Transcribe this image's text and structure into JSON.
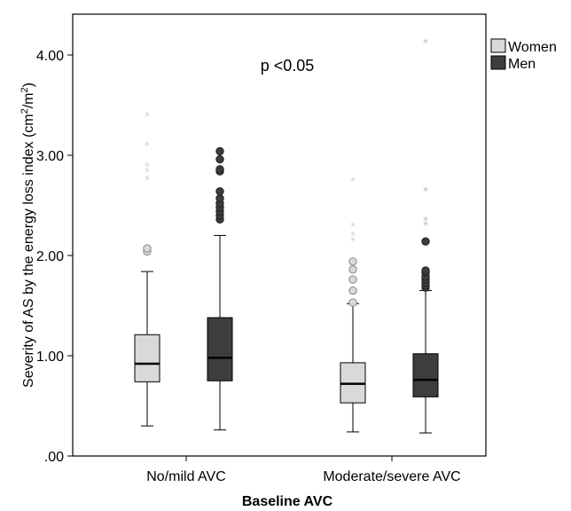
{
  "chart_data": {
    "type": "boxplot",
    "title": "",
    "xlabel": "Baseline AVC",
    "ylabel": "Severity of AS by the energy loss index (cm²/m²)",
    "ylabel_main": "Severity of AS by the energy loss index (cm",
    "ylabel_sup1": "2",
    "ylabel_mid": "/m",
    "ylabel_sup2": "2",
    "ylabel_end": ")",
    "ylim": [
      0,
      4.45
    ],
    "yticks": [
      0,
      1,
      2,
      3,
      4
    ],
    "ytick_labels": [
      ".00",
      "1.00",
      "2.00",
      "3.00",
      "4.00"
    ],
    "categories": [
      "No/mild AVC",
      "Moderate/severe AVC"
    ],
    "annotation": "p <0.05",
    "legend_position": "right-outside-top",
    "grid": false,
    "colors": {
      "Women": "#d9d9d9",
      "Men": "#3d3d3d",
      "axis": "#000000"
    },
    "series": [
      {
        "name": "Women",
        "boxes": [
          {
            "whisker_low": 0.3,
            "q1": 0.74,
            "median": 0.92,
            "q3": 1.21,
            "whisker_high": 1.84,
            "outliers": [
              2.04,
              2.07
            ],
            "extremes": [
              2.76,
              2.84,
              2.9,
              3.1,
              3.4
            ]
          },
          {
            "whisker_low": 0.24,
            "q1": 0.53,
            "median": 0.72,
            "q3": 0.93,
            "whisker_high": 1.52,
            "outliers": [
              1.53,
              1.65,
              1.76,
              1.86,
              1.94
            ],
            "extremes": [
              2.15,
              2.21,
              2.3,
              2.75
            ]
          }
        ]
      },
      {
        "name": "Men",
        "boxes": [
          {
            "whisker_low": 0.26,
            "q1": 0.75,
            "median": 0.98,
            "q3": 1.38,
            "whisker_high": 2.2,
            "outliers": [
              2.36,
              2.4,
              2.44,
              2.48,
              2.52,
              2.57,
              2.64,
              2.84,
              2.86,
              2.96,
              3.04
            ],
            "extremes": []
          },
          {
            "whisker_low": 0.23,
            "q1": 0.59,
            "median": 0.76,
            "q3": 1.02,
            "whisker_high": 1.65,
            "outliers": [
              1.68,
              1.7,
              1.73,
              1.76,
              1.79,
              1.83,
              1.85,
              2.14
            ],
            "extremes": [
              2.31,
              2.36,
              2.65,
              4.13
            ]
          }
        ]
      }
    ]
  }
}
